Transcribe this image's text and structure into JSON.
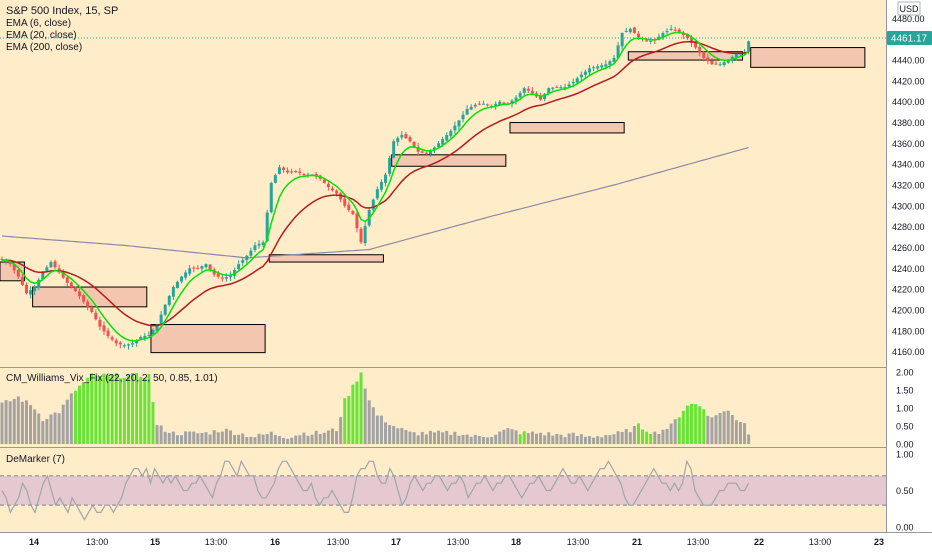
{
  "chart_data": [
    {
      "type": "candlestick",
      "panel": "price",
      "title": "S&P 500 Index, 15, SP",
      "indicators": [
        "EMA (6, close)",
        "EMA (20, close)",
        "EMA (200, close)"
      ],
      "currency": "USD",
      "last_price": "4461.17",
      "ylim": [
        4150,
        4490
      ],
      "yticks": [
        4160,
        4180,
        4200,
        4220,
        4240,
        4260,
        4280,
        4300,
        4320,
        4340,
        4360,
        4380,
        4400,
        4420,
        4440,
        4460,
        4480
      ],
      "ytick_labels": [
        "4160.00",
        "4180.00",
        "4200.00",
        "4220.00",
        "4240.00",
        "4260.00",
        "4280.00",
        "4300.00",
        "4320.00",
        "4340.00",
        "4360.00",
        "4380.00",
        "4400.00",
        "4420.00",
        "4440.00",
        "4460.00",
        "4480.00"
      ],
      "xticks": [
        "14",
        "13:00",
        "15",
        "13:00",
        "16",
        "13:00",
        "17",
        "13:00",
        "18",
        "13:00",
        "21",
        "13:00",
        "22",
        "13:00",
        "23"
      ],
      "anchors": [
        [
          0,
          4248
        ],
        [
          2,
          4244
        ],
        [
          4,
          4232
        ],
        [
          6,
          4216
        ],
        [
          8,
          4222
        ],
        [
          10,
          4236
        ],
        [
          12,
          4246
        ],
        [
          14,
          4236
        ],
        [
          16,
          4226
        ],
        [
          18,
          4218
        ],
        [
          20,
          4208
        ],
        [
          22,
          4198
        ],
        [
          24,
          4184
        ],
        [
          26,
          4175
        ],
        [
          28,
          4168
        ],
        [
          30,
          4166
        ],
        [
          32,
          4168
        ],
        [
          34,
          4174
        ],
        [
          36,
          4176
        ],
        [
          38,
          4186
        ],
        [
          40,
          4205
        ],
        [
          42,
          4222
        ],
        [
          44,
          4232
        ],
        [
          46,
          4240
        ],
        [
          48,
          4240
        ],
        [
          50,
          4244
        ],
        [
          52,
          4234
        ],
        [
          54,
          4230
        ],
        [
          56,
          4233
        ],
        [
          58,
          4244
        ],
        [
          60,
          4252
        ],
        [
          62,
          4262
        ],
        [
          64,
          4265
        ],
        [
          66,
          4322
        ],
        [
          68,
          4337
        ],
        [
          70,
          4332
        ],
        [
          72,
          4333
        ],
        [
          74,
          4330
        ],
        [
          76,
          4330
        ],
        [
          78,
          4326
        ],
        [
          80,
          4318
        ],
        [
          82,
          4312
        ],
        [
          84,
          4300
        ],
        [
          86,
          4292
        ],
        [
          88,
          4265
        ],
        [
          90,
          4296
        ],
        [
          92,
          4316
        ],
        [
          94,
          4330
        ],
        [
          96,
          4362
        ],
        [
          98,
          4368
        ],
        [
          100,
          4362
        ],
        [
          102,
          4352
        ],
        [
          104,
          4350
        ],
        [
          106,
          4356
        ],
        [
          108,
          4364
        ],
        [
          110,
          4372
        ],
        [
          112,
          4382
        ],
        [
          114,
          4393
        ],
        [
          116,
          4397
        ],
        [
          118,
          4398
        ],
        [
          120,
          4396
        ],
        [
          122,
          4400
        ],
        [
          124,
          4398
        ],
        [
          126,
          4404
        ],
        [
          128,
          4413
        ],
        [
          130,
          4408
        ],
        [
          132,
          4402
        ],
        [
          134,
          4413
        ],
        [
          136,
          4414
        ],
        [
          138,
          4414
        ],
        [
          140,
          4419
        ],
        [
          142,
          4426
        ],
        [
          144,
          4432
        ],
        [
          146,
          4434
        ],
        [
          148,
          4436
        ],
        [
          150,
          4442
        ],
        [
          152,
          4466
        ],
        [
          154,
          4470
        ],
        [
          156,
          4462
        ],
        [
          158,
          4458
        ],
        [
          160,
          4459
        ],
        [
          162,
          4466
        ],
        [
          164,
          4470
        ],
        [
          166,
          4467
        ],
        [
          168,
          4461
        ],
        [
          170,
          4452
        ],
        [
          172,
          4442
        ],
        [
          174,
          4436
        ],
        [
          176,
          4436
        ],
        [
          178,
          4440
        ],
        [
          180,
          4446
        ],
        [
          182,
          4448
        ],
        [
          183,
          4458
        ]
      ],
      "zones": [
        {
          "from_bar": 0,
          "to_bar": 5,
          "y_low": 4228,
          "y_high": 4246
        },
        {
          "from_bar": 8,
          "to_bar": 35,
          "y_low": 4203,
          "y_high": 4222
        },
        {
          "from_bar": 37,
          "to_bar": 64,
          "y_low": 4159,
          "y_high": 4186
        },
        {
          "from_bar": 66,
          "to_bar": 93,
          "y_low": 4246,
          "y_high": 4253
        },
        {
          "from_bar": 96,
          "to_bar": 123,
          "y_low": 4338,
          "y_high": 4349
        },
        {
          "from_bar": 125,
          "to_bar": 152,
          "y_low": 4370,
          "y_high": 4380
        },
        {
          "from_bar": 154,
          "to_bar": 181,
          "y_low": 4440,
          "y_high": 4448
        },
        {
          "from_bar": 184,
          "to_bar": 211,
          "y_low": 4433,
          "y_high": 4452
        }
      ],
      "ema200_endpoints": [
        [
          0,
          4271
        ],
        [
          30,
          4262
        ],
        [
          60,
          4250
        ],
        [
          90,
          4258
        ],
        [
          120,
          4290
        ],
        [
          150,
          4320
        ],
        [
          183,
          4356
        ]
      ],
      "colors": {
        "up": "#26a69a",
        "down": "#ef5350",
        "ema6": "#00e600",
        "ema20": "#b71c1c",
        "ema200": "#8a8aa6",
        "zone_fill": "#f3c6b0",
        "zone_stroke": "#000000",
        "price_tag": "#26a69a"
      }
    },
    {
      "type": "bar",
      "panel": "vix_fix",
      "title": "CM_Williams_Vix_Fix (22, 20, 2, 50, 0.85, 1.01)",
      "ylim": [
        0,
        2.0
      ],
      "yticks": [
        0,
        0.5,
        1.0,
        1.5,
        2.0
      ],
      "ytick_labels": [
        "0.00",
        "0.50",
        "1.00",
        "1.50",
        "2.00"
      ],
      "anchors": [
        [
          0,
          1.1
        ],
        [
          4,
          1.3
        ],
        [
          8,
          1.0
        ],
        [
          10,
          0.7
        ],
        [
          14,
          0.9
        ],
        [
          18,
          1.5
        ],
        [
          20,
          1.7
        ],
        [
          22,
          1.9
        ],
        [
          26,
          1.9
        ],
        [
          30,
          1.9
        ],
        [
          34,
          1.9
        ],
        [
          36,
          1.9
        ],
        [
          38,
          0.5
        ],
        [
          42,
          0.3
        ],
        [
          46,
          0.3
        ],
        [
          50,
          0.3
        ],
        [
          54,
          0.4
        ],
        [
          58,
          0.3
        ],
        [
          62,
          0.2
        ],
        [
          66,
          0.3
        ],
        [
          70,
          0.2
        ],
        [
          74,
          0.3
        ],
        [
          78,
          0.3
        ],
        [
          82,
          0.4
        ],
        [
          84,
          1.2
        ],
        [
          86,
          1.6
        ],
        [
          88,
          2.0
        ],
        [
          90,
          1.2
        ],
        [
          92,
          0.8
        ],
        [
          96,
          0.5
        ],
        [
          100,
          0.3
        ],
        [
          104,
          0.3
        ],
        [
          108,
          0.3
        ],
        [
          112,
          0.3
        ],
        [
          116,
          0.2
        ],
        [
          120,
          0.25
        ],
        [
          124,
          0.4
        ],
        [
          128,
          0.3
        ],
        [
          132,
          0.3
        ],
        [
          136,
          0.25
        ],
        [
          140,
          0.25
        ],
        [
          144,
          0.2
        ],
        [
          148,
          0.25
        ],
        [
          152,
          0.3
        ],
        [
          156,
          0.5
        ],
        [
          160,
          0.3
        ],
        [
          164,
          0.5
        ],
        [
          166,
          0.8
        ],
        [
          168,
          1.1
        ],
        [
          170,
          1.1
        ],
        [
          172,
          1.0
        ],
        [
          174,
          0.7
        ],
        [
          176,
          0.9
        ],
        [
          178,
          0.9
        ],
        [
          180,
          0.7
        ],
        [
          182,
          0.6
        ],
        [
          183,
          0.3
        ]
      ],
      "green_ranges": [
        [
          18,
          37
        ],
        [
          84,
          88
        ],
        [
          127,
          128
        ],
        [
          156,
          159
        ],
        [
          166,
          172
        ]
      ],
      "colors": {
        "normal": "#a3a3a3",
        "alert": "#66e633"
      }
    },
    {
      "type": "line",
      "panel": "demarker",
      "title": "DeMarker (7)",
      "ylim": [
        0,
        1.0
      ],
      "yticks": [
        0,
        0.5,
        1.0
      ],
      "ytick_labels": [
        "0.00",
        "0.50",
        "1.00"
      ],
      "band": [
        0.3,
        0.7
      ],
      "values": [
        0.5,
        0.4,
        0.2,
        0.3,
        0.4,
        0.6,
        0.5,
        0.3,
        0.2,
        0.4,
        0.6,
        0.7,
        0.5,
        0.3,
        0.4,
        0.3,
        0.2,
        0.4,
        0.3,
        0.2,
        0.1,
        0.2,
        0.3,
        0.2,
        0.2,
        0.3,
        0.3,
        0.2,
        0.3,
        0.4,
        0.6,
        0.7,
        0.8,
        0.8,
        0.7,
        0.8,
        0.6,
        0.8,
        0.7,
        0.6,
        0.7,
        0.6,
        0.7,
        0.6,
        0.5,
        0.5,
        0.6,
        0.6,
        0.7,
        0.6,
        0.5,
        0.4,
        0.6,
        0.7,
        0.9,
        0.9,
        0.8,
        0.7,
        0.9,
        0.8,
        0.7,
        0.7,
        0.5,
        0.4,
        0.4,
        0.5,
        0.6,
        0.8,
        0.9,
        0.9,
        0.8,
        0.7,
        0.6,
        0.5,
        0.5,
        0.6,
        0.4,
        0.3,
        0.4,
        0.4,
        0.5,
        0.4,
        0.3,
        0.2,
        0.2,
        0.4,
        0.7,
        0.8,
        0.8,
        0.9,
        0.9,
        0.7,
        0.6,
        0.6,
        0.8,
        0.7,
        0.5,
        0.3,
        0.4,
        0.6,
        0.7,
        0.6,
        0.5,
        0.6,
        0.6,
        0.7,
        0.7,
        0.6,
        0.5,
        0.6,
        0.6,
        0.7,
        0.6,
        0.4,
        0.5,
        0.6,
        0.6,
        0.7,
        0.6,
        0.5,
        0.6,
        0.6,
        0.7,
        0.7,
        0.6,
        0.5,
        0.4,
        0.5,
        0.6,
        0.6,
        0.7,
        0.6,
        0.5,
        0.5,
        0.6,
        0.7,
        0.8,
        0.7,
        0.6,
        0.6,
        0.7,
        0.6,
        0.5,
        0.6,
        0.7,
        0.8,
        0.8,
        0.9,
        0.8,
        0.7,
        0.6,
        0.4,
        0.3,
        0.3,
        0.4,
        0.5,
        0.6,
        0.7,
        0.8,
        0.7,
        0.6,
        0.6,
        0.5,
        0.6,
        0.5,
        0.6,
        0.9,
        0.8,
        0.5,
        0.4,
        0.3,
        0.3,
        0.3,
        0.4,
        0.5,
        0.5,
        0.6,
        0.6,
        0.6,
        0.5,
        0.5,
        0.6
      ],
      "colors": {
        "line": "#9ea7ab",
        "band": "#e5c8d0",
        "dash": "#808080"
      }
    }
  ]
}
